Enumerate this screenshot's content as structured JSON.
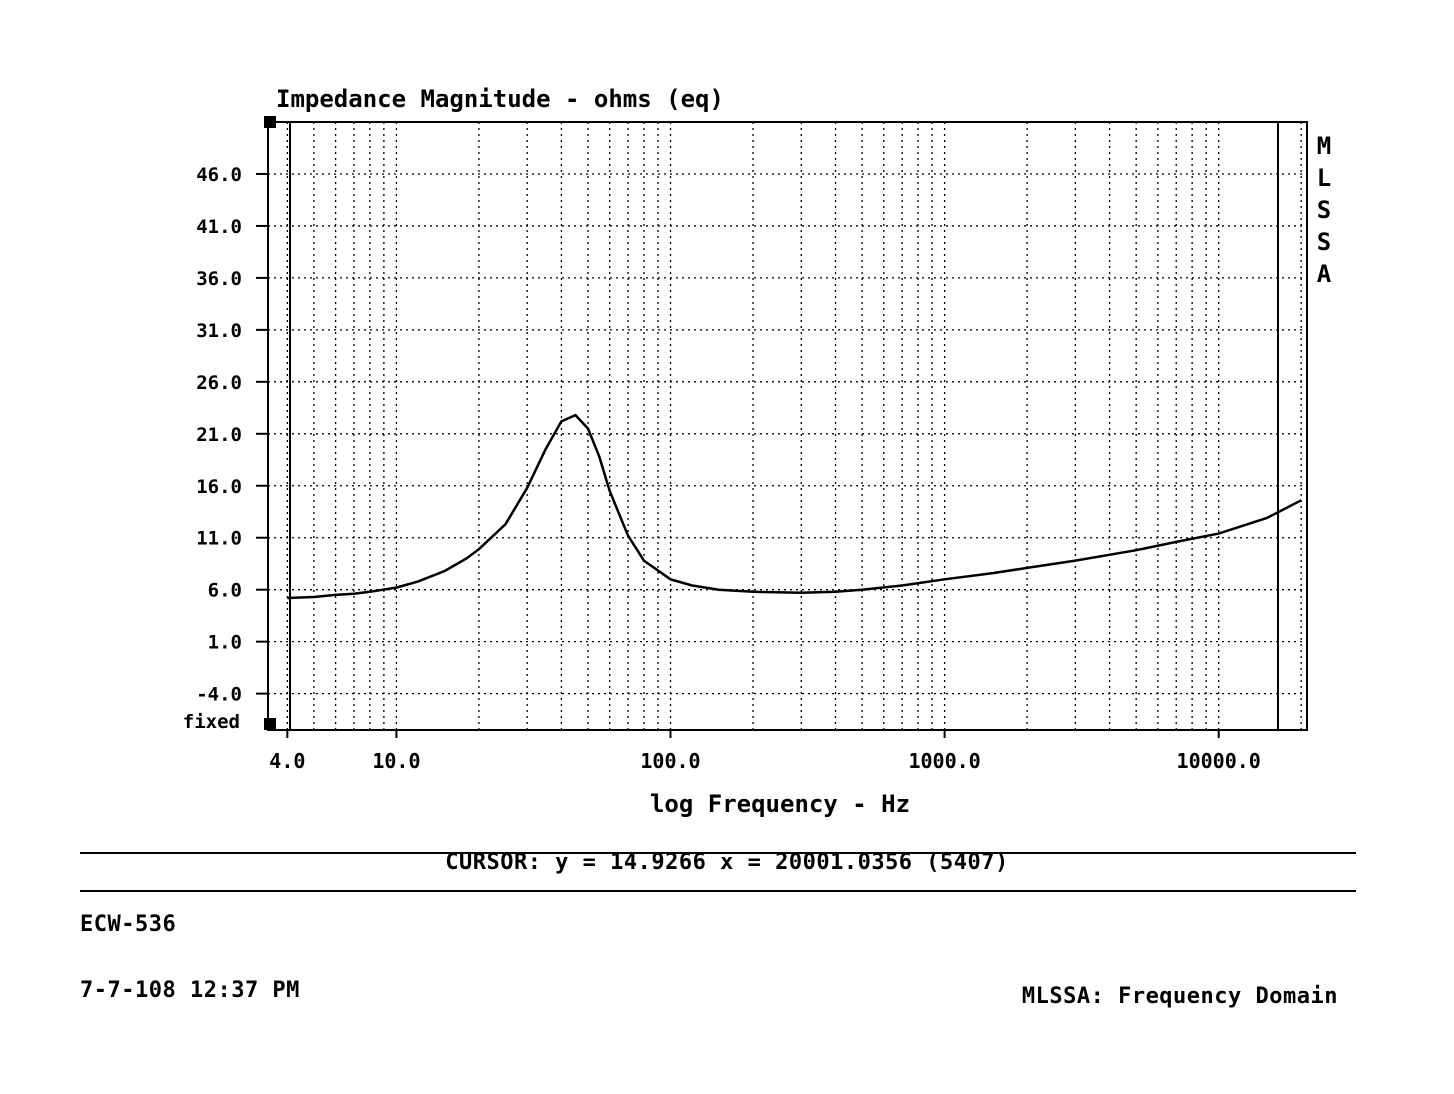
{
  "chart_data": {
    "type": "line",
    "title": "Impedance Magnitude - ohms (eq)",
    "xlabel": "log Frequency - Hz",
    "ylabel": "",
    "x_scale": "log",
    "xlim": [
      3.4,
      21000
    ],
    "ylim": [
      -7.5,
      51
    ],
    "grid": true,
    "y_ticks": [
      "46.0",
      "41.0",
      "36.0",
      "31.0",
      "26.0",
      "21.0",
      "16.0",
      "11.0",
      "6.0",
      "1.0",
      "-4.0"
    ],
    "y_tick_values": [
      46,
      41,
      36,
      31,
      26,
      21,
      16,
      11,
      6,
      1,
      -4
    ],
    "y_bottom_label": "fixed",
    "x_ticks": [
      "4.0",
      "10.0",
      "100.0",
      "1000.0",
      "10000.0"
    ],
    "x_tick_values": [
      4,
      10,
      100,
      1000,
      10000
    ],
    "side_label": [
      "M",
      "L",
      "S",
      "S",
      "A"
    ],
    "series": [
      {
        "x": [
          4,
          5,
          6,
          7,
          8,
          10,
          12,
          15,
          18,
          20,
          25,
          30,
          35,
          40,
          45,
          50,
          55,
          60,
          70,
          80,
          100,
          120,
          150,
          200,
          300,
          400,
          500,
          700,
          1000,
          1500,
          2000,
          3000,
          5000,
          7000,
          10000,
          15000,
          20000
        ],
        "y": [
          5.2,
          5.3,
          5.5,
          5.6,
          5.8,
          6.2,
          6.8,
          7.8,
          9.0,
          9.9,
          12.3,
          15.8,
          19.5,
          22.2,
          22.8,
          21.5,
          18.8,
          15.5,
          11.2,
          8.8,
          7.0,
          6.4,
          6.0,
          5.8,
          5.7,
          5.8,
          6.0,
          6.4,
          7.0,
          7.6,
          8.1,
          8.8,
          9.8,
          10.6,
          11.4,
          12.9,
          14.6
        ]
      }
    ]
  },
  "cursor_readout": "CURSOR: y = 14.9266 x = 20001.0356 (5407)",
  "footer": {
    "device_id": "ECW-536",
    "timestamp": "7-7-108 12:37 PM",
    "mode": "MLSSA: Frequency Domain"
  }
}
